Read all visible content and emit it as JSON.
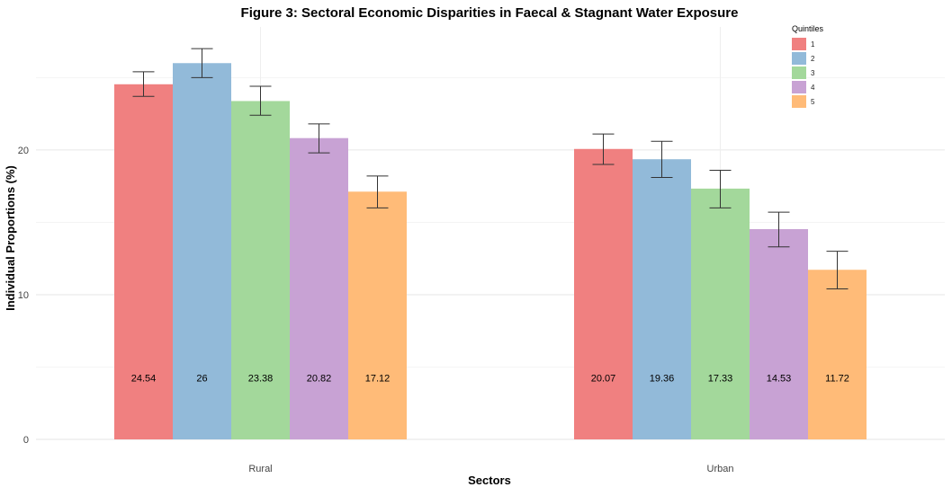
{
  "chart_data": {
    "type": "bar",
    "title": "Figure 3: Sectoral Economic Disparities in Faecal & Stagnant Water Exposure",
    "xlabel": "Sectors",
    "ylabel": "Individual Proportions (%)",
    "categories": [
      "Rural",
      "Urban"
    ],
    "ylim": [
      0,
      28.5
    ],
    "yticks": [
      0,
      10,
      20
    ],
    "grid": true,
    "legend": {
      "title": "Quintiles",
      "placement": "top-right"
    },
    "series": [
      {
        "name": "1",
        "color": "#F08080",
        "values": [
          24.54,
          20.07
        ],
        "error_low": [
          23.7,
          19.0
        ],
        "error_high": [
          25.4,
          21.1
        ],
        "labels": [
          "24.54",
          "20.07"
        ]
      },
      {
        "name": "2",
        "color": "#92BAD9",
        "values": [
          26,
          19.36
        ],
        "error_low": [
          25.0,
          18.1
        ],
        "error_high": [
          27.0,
          20.6
        ],
        "labels": [
          "26",
          "19.36"
        ]
      },
      {
        "name": "3",
        "color": "#A3D89B",
        "values": [
          23.38,
          17.33
        ],
        "error_low": [
          22.4,
          16.0
        ],
        "error_high": [
          24.4,
          18.6
        ],
        "labels": [
          "23.38",
          "17.33"
        ]
      },
      {
        "name": "4",
        "color": "#C8A2D4",
        "values": [
          20.82,
          14.53
        ],
        "error_low": [
          19.8,
          13.3
        ],
        "error_high": [
          21.8,
          15.7
        ],
        "labels": [
          "20.82",
          "14.53"
        ]
      },
      {
        "name": "5",
        "color": "#FFBB78",
        "values": [
          17.12,
          11.72
        ],
        "error_low": [
          16.0,
          10.4
        ],
        "error_high": [
          18.2,
          13.0
        ],
        "labels": [
          "17.12",
          "11.72"
        ]
      }
    ],
    "data_label_y": 4.2
  }
}
